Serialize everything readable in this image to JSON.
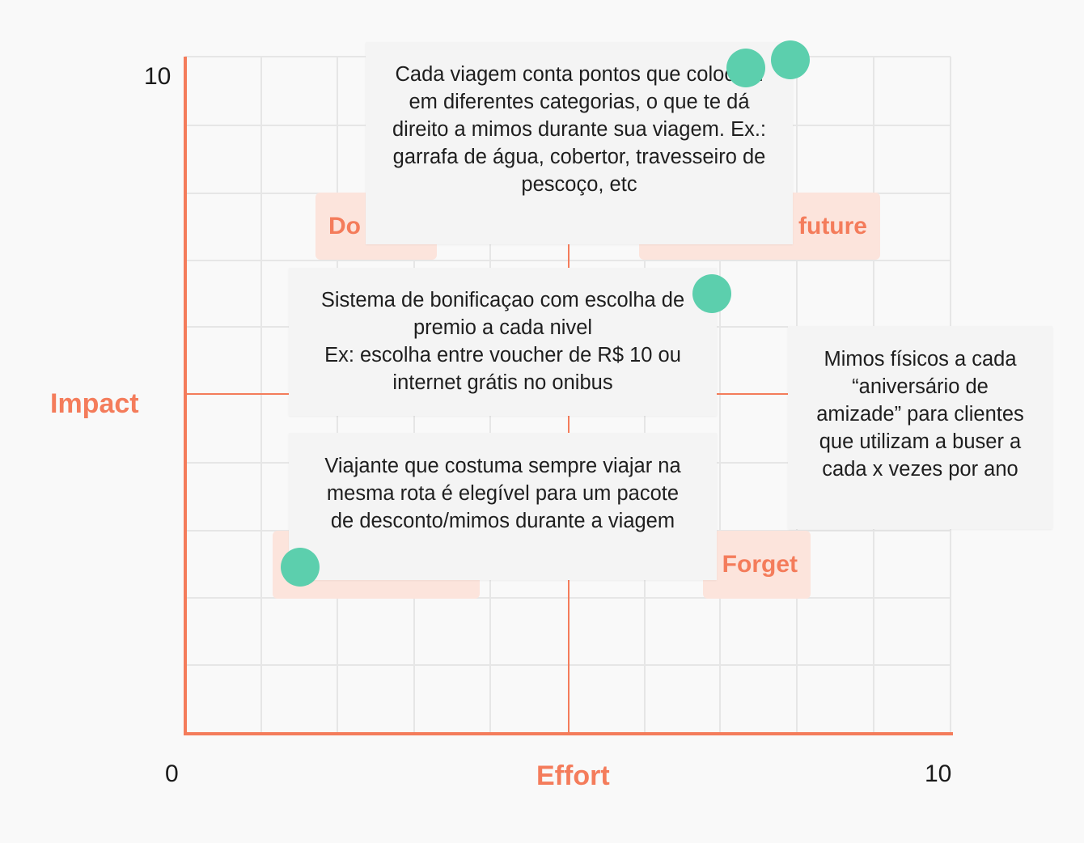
{
  "axes": {
    "x_title": "Effort",
    "y_title": "Impact",
    "x_min_label": "0",
    "x_max_label": "10",
    "y_max_label": "10"
  },
  "quadrants": [
    {
      "label": "Do"
    },
    {
      "label": "future"
    },
    {
      "label": ""
    },
    {
      "label": "Forget"
    }
  ],
  "notes": [
    {
      "text": "Cada viagem conta pontos que colocam em diferentes categorias, o que te dá direito a mimos durante sua viagem. Ex.: garrafa de água, cobertor, travesseiro de pescoço, etc"
    },
    {
      "text": "Sistema de bonificaçao com escolha de premio a cada nivel\nEx: escolha entre voucher de R$ 10 ou internet grátis no onibus"
    },
    {
      "text": "Viajante que costuma sempre viajar na mesma rota é elegível para um pacote de desconto/mimos durante a viagem"
    },
    {
      "text": "Mimos físicos a cada “aniversário de amizade” para clientes que utilizam a buser a cada x vezes por ano"
    }
  ],
  "colors": {
    "axis": "#f47c5b",
    "grid": "#e6e6e6",
    "quadrant_fill": "#fce4dc",
    "note_fill": "#f4f4f4",
    "dot": "#5ccfad"
  }
}
